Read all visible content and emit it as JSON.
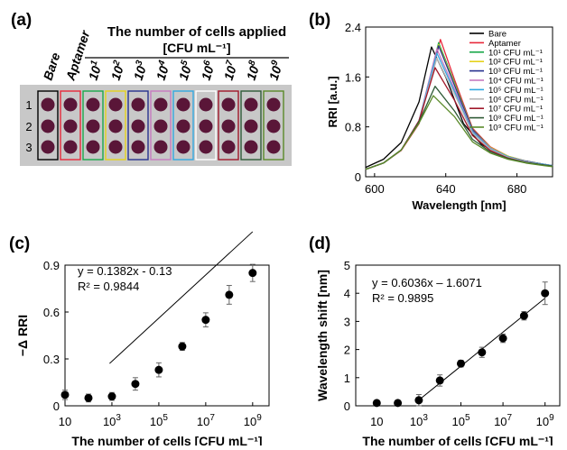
{
  "panel_a": {
    "label": "(a)",
    "header": "The number of cells applied",
    "unit": "[CFU mL⁻¹]",
    "columns": [
      {
        "text": "Bare",
        "sup": "",
        "color": "#000000"
      },
      {
        "text": "Aptamer",
        "sup": "",
        "color": "#e8283a"
      },
      {
        "text": "10",
        "sup": "1",
        "color": "#1aa84a"
      },
      {
        "text": "10",
        "sup": "2",
        "color": "#e5d21c"
      },
      {
        "text": "10",
        "sup": "3",
        "color": "#27328f"
      },
      {
        "text": "10",
        "sup": "4",
        "color": "#c77bc0"
      },
      {
        "text": "10",
        "sup": "5",
        "color": "#33a8e0"
      },
      {
        "text": "10",
        "sup": "6",
        "color": "#ffffff"
      },
      {
        "text": "10",
        "sup": "7",
        "color": "#a0182a"
      },
      {
        "text": "10",
        "sup": "8",
        "color": "#2f5a36"
      },
      {
        "text": "10",
        "sup": "9",
        "color": "#5a8a2a"
      }
    ],
    "rows": [
      "1",
      "2",
      "3"
    ],
    "well_color": "#5a1638",
    "plate_color": "#c8c8c8"
  },
  "chart_data": [
    {
      "panel": "(b)",
      "type": "line",
      "xlabel": "Wavelength [nm]",
      "ylabel": "RRI [a.u.]",
      "xlim": [
        595,
        700
      ],
      "ylim": [
        0,
        2.4
      ],
      "xticks": [
        "600",
        "640",
        "680"
      ],
      "yticks": [
        "0",
        "0.8",
        "1.6",
        "2.4"
      ],
      "legend_position": "top-right",
      "series": [
        {
          "name": "Bare",
          "color": "#000000",
          "peak_x": 632,
          "peak_y": 2.08,
          "x": [
            595,
            605,
            615,
            625,
            632,
            640,
            650,
            660,
            670,
            680,
            690,
            700
          ],
          "y": [
            0.15,
            0.28,
            0.55,
            1.2,
            2.08,
            1.6,
            0.85,
            0.52,
            0.36,
            0.27,
            0.21,
            0.17
          ]
        },
        {
          "name": "Aptamer",
          "color": "#e8283a",
          "peak_x": 637,
          "peak_y": 2.2,
          "x": [
            595,
            605,
            615,
            625,
            637,
            645,
            655,
            665,
            675,
            685,
            695,
            700
          ],
          "y": [
            0.12,
            0.22,
            0.42,
            0.85,
            2.2,
            1.55,
            0.78,
            0.48,
            0.33,
            0.25,
            0.2,
            0.18
          ]
        },
        {
          "name": "10¹ CFU mL⁻¹",
          "color": "#1aa84a",
          "peak_x": 636,
          "peak_y": 2.15,
          "x": [
            595,
            605,
            615,
            625,
            636,
            645,
            655,
            665,
            675,
            685,
            695,
            700
          ],
          "y": [
            0.12,
            0.22,
            0.43,
            0.88,
            2.15,
            1.5,
            0.76,
            0.47,
            0.33,
            0.25,
            0.2,
            0.18
          ]
        },
        {
          "name": "10² CFU mL⁻¹",
          "color": "#e5d21c",
          "peak_x": 636,
          "peak_y": 2.12,
          "x": [
            595,
            605,
            615,
            625,
            636,
            645,
            655,
            665,
            675,
            685,
            695,
            700
          ],
          "y": [
            0.12,
            0.22,
            0.43,
            0.88,
            2.12,
            1.48,
            0.75,
            0.47,
            0.33,
            0.25,
            0.2,
            0.18
          ]
        },
        {
          "name": "10³ CFU mL⁻¹",
          "color": "#27328f",
          "peak_x": 636,
          "peak_y": 2.1,
          "x": [
            595,
            605,
            615,
            625,
            636,
            645,
            655,
            665,
            675,
            685,
            695,
            700
          ],
          "y": [
            0.12,
            0.22,
            0.43,
            0.89,
            2.1,
            1.46,
            0.75,
            0.46,
            0.32,
            0.25,
            0.2,
            0.18
          ]
        },
        {
          "name": "10⁴ CFU mL⁻¹",
          "color": "#c77bc0",
          "peak_x": 635,
          "peak_y": 2.05,
          "x": [
            595,
            605,
            615,
            625,
            635,
            645,
            655,
            665,
            675,
            685,
            695,
            700
          ],
          "y": [
            0.12,
            0.22,
            0.43,
            0.9,
            2.05,
            1.4,
            0.73,
            0.46,
            0.32,
            0.24,
            0.2,
            0.18
          ]
        },
        {
          "name": "10⁵ CFU mL⁻¹",
          "color": "#33a8e0",
          "peak_x": 635,
          "peak_y": 1.98,
          "x": [
            595,
            605,
            615,
            625,
            635,
            645,
            655,
            665,
            675,
            685,
            695,
            700
          ],
          "y": [
            0.12,
            0.22,
            0.43,
            0.9,
            1.98,
            1.36,
            0.72,
            0.45,
            0.32,
            0.24,
            0.2,
            0.18
          ]
        },
        {
          "name": "10⁶ CFU mL⁻¹",
          "color": "#b8b8b8",
          "peak_x": 635,
          "peak_y": 1.9,
          "x": [
            595,
            605,
            615,
            625,
            635,
            645,
            655,
            665,
            675,
            685,
            695,
            700
          ],
          "y": [
            0.12,
            0.22,
            0.43,
            0.9,
            1.9,
            1.32,
            0.7,
            0.44,
            0.31,
            0.24,
            0.19,
            0.17
          ]
        },
        {
          "name": "10⁷ CFU mL⁻¹",
          "color": "#a0182a",
          "peak_x": 634,
          "peak_y": 1.75,
          "x": [
            595,
            605,
            615,
            625,
            634,
            645,
            655,
            665,
            675,
            685,
            695,
            700
          ],
          "y": [
            0.12,
            0.22,
            0.43,
            0.9,
            1.75,
            1.22,
            0.66,
            0.42,
            0.3,
            0.23,
            0.19,
            0.17
          ]
        },
        {
          "name": "10⁸ CFU mL⁻¹",
          "color": "#2f5a36",
          "peak_x": 634,
          "peak_y": 1.45,
          "x": [
            595,
            605,
            615,
            625,
            634,
            645,
            655,
            665,
            675,
            685,
            695,
            700
          ],
          "y": [
            0.12,
            0.22,
            0.43,
            0.88,
            1.45,
            1.05,
            0.6,
            0.4,
            0.29,
            0.23,
            0.19,
            0.17
          ]
        },
        {
          "name": "10⁹ CFU mL⁻¹",
          "color": "#5a8a2a",
          "peak_x": 633,
          "peak_y": 1.3,
          "x": [
            595,
            605,
            615,
            625,
            633,
            645,
            655,
            665,
            675,
            685,
            695,
            700
          ],
          "y": [
            0.12,
            0.22,
            0.43,
            0.86,
            1.3,
            0.96,
            0.56,
            0.38,
            0.28,
            0.22,
            0.18,
            0.16
          ]
        }
      ]
    },
    {
      "panel": "(c)",
      "type": "scatter",
      "xlabel": "The number of cells [CFU mL⁻¹]",
      "ylabel": "−Δ RRI",
      "xscale": "log",
      "xlim": [
        1,
        9.7
      ],
      "ylim": [
        0,
        0.9
      ],
      "xticks": [
        {
          "base": "10",
          "exp": "",
          "value": 1
        },
        {
          "base": "10",
          "exp": "3",
          "value": 3
        },
        {
          "base": "10",
          "exp": "5",
          "value": 5
        },
        {
          "base": "10",
          "exp": "7",
          "value": 7
        },
        {
          "base": "10",
          "exp": "9",
          "value": 9
        }
      ],
      "yticks": [
        "0",
        "0.3",
        "0.6",
        "0.9"
      ],
      "equation": "y = 0.1382x - 0.13",
      "r2": "R² = 0.9844",
      "fit": {
        "slope": 0.1382,
        "intercept": -0.13
      },
      "points": [
        {
          "x": 1,
          "y": 0.07,
          "err": 0.03
        },
        {
          "x": 2,
          "y": 0.05,
          "err": 0.025
        },
        {
          "x": 3,
          "y": 0.06,
          "err": 0.025
        },
        {
          "x": 4,
          "y": 0.14,
          "err": 0.04
        },
        {
          "x": 5,
          "y": 0.23,
          "err": 0.045
        },
        {
          "x": 6,
          "y": 0.38,
          "err": 0.025
        },
        {
          "x": 7,
          "y": 0.55,
          "err": 0.045
        },
        {
          "x": 8,
          "y": 0.71,
          "err": 0.06
        },
        {
          "x": 9,
          "y": 0.85,
          "err": 0.055
        }
      ]
    },
    {
      "panel": "(d)",
      "type": "scatter",
      "xlabel": "The number of cells [CFU mL⁻¹]",
      "ylabel": "Wavelength shift [nm]",
      "xscale": "log",
      "xlim": [
        0,
        9.7
      ],
      "ylim": [
        0,
        5
      ],
      "xticks": [
        {
          "base": "10",
          "exp": "",
          "value": 1
        },
        {
          "base": "10",
          "exp": "3",
          "value": 3
        },
        {
          "base": "10",
          "exp": "5",
          "value": 5
        },
        {
          "base": "10",
          "exp": "7",
          "value": 7
        },
        {
          "base": "10",
          "exp": "9",
          "value": 9
        }
      ],
      "yticks": [
        "0",
        "1",
        "2",
        "3",
        "4",
        "5"
      ],
      "equation": "y = 0.6036x – 1.6071",
      "r2": "R² = 0.9895",
      "fit": {
        "slope": 0.6036,
        "intercept": -1.6071
      },
      "points": [
        {
          "x": 1,
          "y": 0.1,
          "err": 0.05
        },
        {
          "x": 2,
          "y": 0.1,
          "err": 0.05
        },
        {
          "x": 3,
          "y": 0.2,
          "err": 0.2
        },
        {
          "x": 4,
          "y": 0.9,
          "err": 0.2
        },
        {
          "x": 5,
          "y": 1.5,
          "err": 0.12
        },
        {
          "x": 6,
          "y": 1.9,
          "err": 0.18
        },
        {
          "x": 7,
          "y": 2.4,
          "err": 0.15
        },
        {
          "x": 8,
          "y": 3.2,
          "err": 0.15
        },
        {
          "x": 9,
          "y": 4.0,
          "err": 0.4
        }
      ]
    }
  ]
}
